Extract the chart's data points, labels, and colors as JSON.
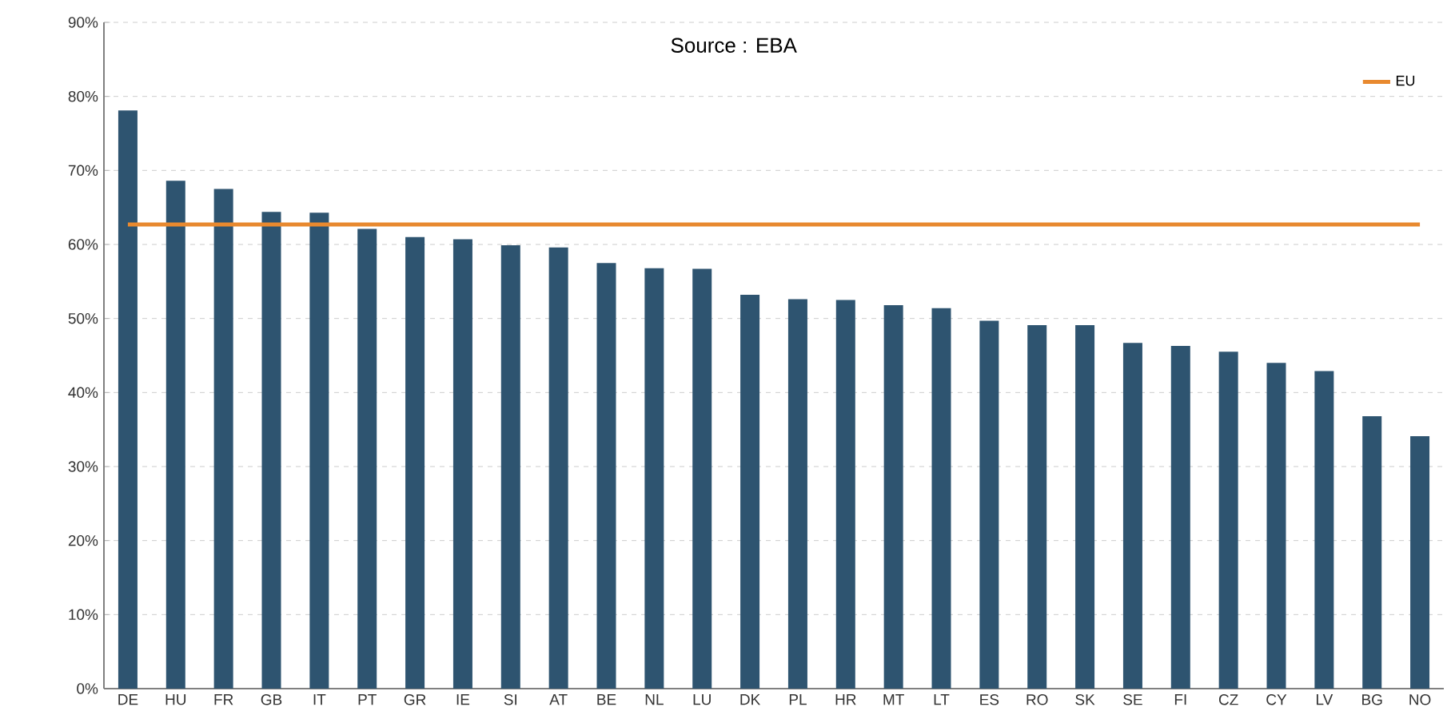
{
  "chart_data": {
    "type": "bar",
    "categories": [
      "DE",
      "HU",
      "FR",
      "GB",
      "IT",
      "PT",
      "GR",
      "IE",
      "SI",
      "AT",
      "BE",
      "NL",
      "LU",
      "DK",
      "PL",
      "HR",
      "MT",
      "LT",
      "ES",
      "RO",
      "SK",
      "SE",
      "FI",
      "CZ",
      "CY",
      "LV",
      "BG",
      "NO"
    ],
    "series": [
      {
        "color": "#2e5470",
        "values": [
          78.1,
          68.6,
          67.5,
          64.4,
          64.3,
          62.1,
          61.0,
          60.7,
          59.9,
          59.6,
          57.5,
          56.8,
          56.7,
          53.2,
          52.6,
          52.5,
          51.8,
          51.4,
          49.7,
          49.1,
          49.1,
          46.7,
          46.3,
          45.5,
          44.0,
          42.9,
          36.8,
          34.1
        ]
      },
      {
        "type": "line",
        "name": "EU",
        "color": "#e8892f",
        "values": [
          62.7,
          62.7,
          62.7,
          62.7,
          62.7,
          62.7,
          62.7,
          62.7,
          62.7,
          62.7,
          62.7,
          62.7,
          62.7,
          62.7,
          62.7,
          62.7,
          62.7,
          62.7,
          62.7,
          62.7,
          62.7,
          62.7,
          62.7,
          62.7,
          62.7,
          62.7,
          62.7,
          62.7
        ]
      }
    ],
    "ylim": [
      0,
      90
    ],
    "yticks": [
      {
        "value": 0,
        "label": "0%"
      },
      {
        "value": 10,
        "label": "10%"
      },
      {
        "value": 20,
        "label": "20%"
      },
      {
        "value": 30,
        "label": "30%"
      },
      {
        "value": 40,
        "label": "40%"
      },
      {
        "value": 50,
        "label": "50%"
      },
      {
        "value": 60,
        "label": "60%"
      },
      {
        "value": 70,
        "label": "70%"
      },
      {
        "value": 80,
        "label": "80%"
      },
      {
        "value": 90,
        "label": "90%"
      }
    ],
    "grid": "y",
    "legend": "top right",
    "marker": "none",
    "line_style": "solid",
    "annotations": [
      "Source : EBA"
    ]
  }
}
